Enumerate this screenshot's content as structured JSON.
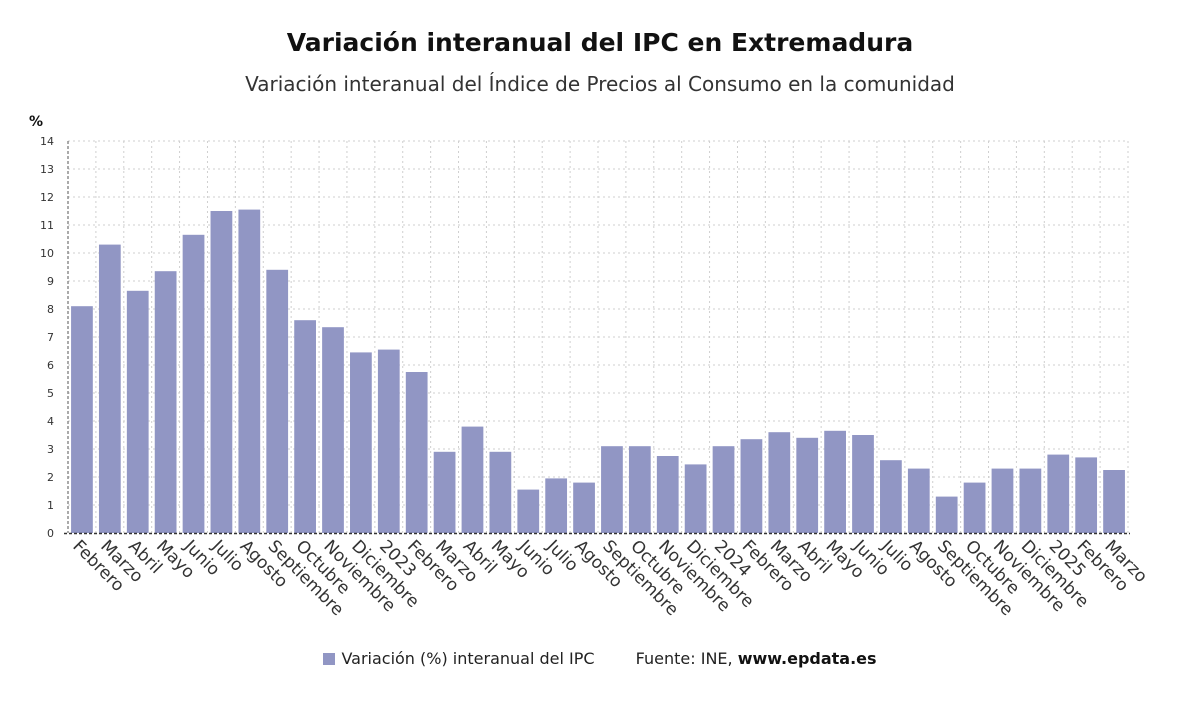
{
  "chart_data": {
    "type": "bar",
    "title": "Variación interanual del IPC en Extremadura",
    "subtitle": "Variación interanual del Índice de Precios al Consumo en la comunidad",
    "ylabel": "%",
    "ylim": [
      0,
      14
    ],
    "yticks": [
      0,
      1,
      2,
      3,
      4,
      5,
      6,
      7,
      8,
      9,
      10,
      11,
      12,
      13,
      14
    ],
    "grid": true,
    "legend_position": "bottom",
    "bar_color": "#9196c4",
    "categories": [
      "Febrero",
      "Marzo",
      "Abril",
      "Mayo",
      "Junio",
      "Julio",
      "Agosto",
      "Septiembre",
      "Octubre",
      "Noviembre",
      "Diciembre",
      "2023",
      "Febrero",
      "Marzo",
      "Abril",
      "Mayo",
      "Junio",
      "Julio",
      "Agosto",
      "Septiembre",
      "Octubre",
      "Noviembre",
      "Diciembre",
      "2024",
      "Febrero",
      "Marzo",
      "Abril",
      "Mayo",
      "Junio",
      "Julio",
      "Agosto",
      "Septiembre",
      "Octubre",
      "Noviembre",
      "Diciembre",
      "2025",
      "Febrero",
      "Marzo"
    ],
    "series": [
      {
        "name": "Variación (%) interanual del IPC",
        "values": [
          8.1,
          10.3,
          8.65,
          9.35,
          10.65,
          11.5,
          11.55,
          9.4,
          7.6,
          7.35,
          6.45,
          6.55,
          5.75,
          2.9,
          3.8,
          2.9,
          1.55,
          1.95,
          1.8,
          3.1,
          3.1,
          2.75,
          2.45,
          3.1,
          3.35,
          3.6,
          3.4,
          3.65,
          3.5,
          2.6,
          2.3,
          1.3,
          1.8,
          2.3,
          2.3,
          2.8,
          2.7,
          2.25
        ]
      }
    ]
  },
  "legend": {
    "label": "Variación (%) interanual del IPC",
    "source_prefix": "Fuente: INE, ",
    "source_site": "www.epdata.es"
  }
}
